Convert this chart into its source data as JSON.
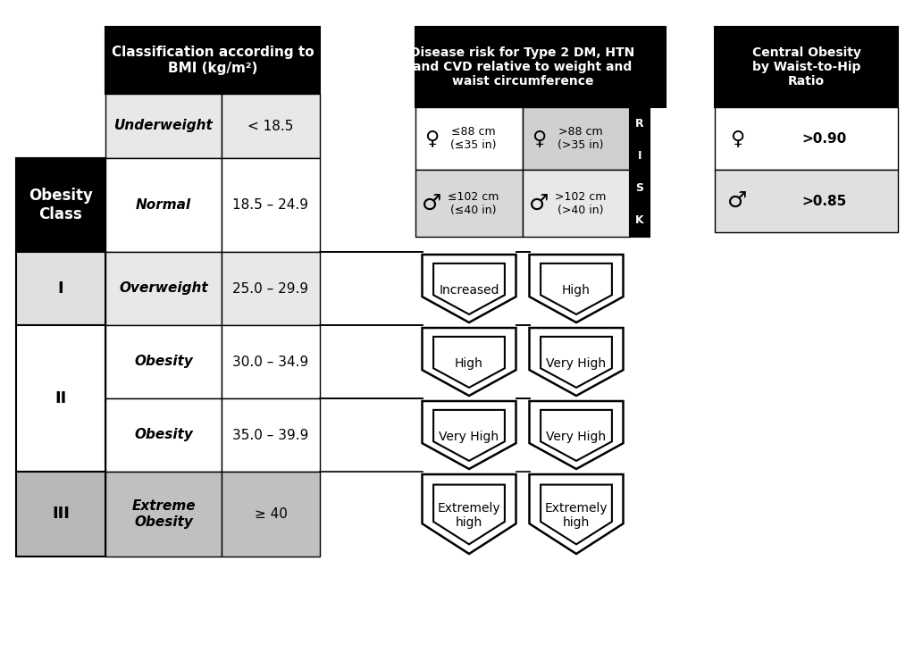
{
  "bg_color": "#ffffff",
  "black": "#000000",
  "light_gray": "#e8e8e8",
  "mid_gray": "#b0b0b0",
  "dark_gray": "#555555",
  "bmi_header": "Classification according to\nBMI (kg/m²)",
  "disease_header": "Disease risk for Type 2 DM, HTN\nand CVD relative to weight and\nwaist circumference",
  "central_header": "Central Obesity\nby Waist-to-Hip\nRatio",
  "obesity_class_label": "Obesity\nClass",
  "rows": [
    {
      "class": "",
      "label": "Underweight",
      "bmi": "< 18.5",
      "class_bg": "#000000",
      "label_bg": "#e8e8e8"
    },
    {
      "class": "",
      "label": "Normal",
      "bmi": "18.5 – 24.9",
      "class_bg": "#000000",
      "label_bg": "#ffffff"
    },
    {
      "class": "I",
      "label": "Overweight",
      "bmi": "25.0 – 29.9",
      "class_bg": "#e8e8e8",
      "label_bg": "#e8e8e8"
    },
    {
      "class": "II",
      "label": "Obesity",
      "bmi": "30.0 – 34.9",
      "class_bg": "#ffffff",
      "label_bg": "#ffffff"
    },
    {
      "class": "II",
      "label": "Obesity",
      "bmi": "35.0 – 39.9",
      "class_bg": "#ffffff",
      "label_bg": "#ffffff"
    },
    {
      "class": "III",
      "label": "Extreme\nObesity",
      "bmi": "≥ 40",
      "class_bg": "#c0c0c0",
      "label_bg": "#c0c0c0"
    }
  ],
  "chevron_left": [
    "Increased",
    "High",
    "Very High",
    "Extremely\nhigh"
  ],
  "chevron_right": [
    "High",
    "Very High",
    "Very High",
    "Extremely\nhigh"
  ]
}
